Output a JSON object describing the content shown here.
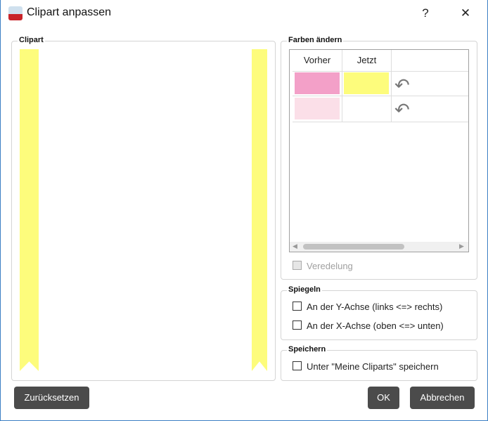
{
  "dialog": {
    "title": "Clipart anpassen",
    "help": "?",
    "close": "✕"
  },
  "clipart_group": {
    "label": "Clipart",
    "strip_color": "#fdfc7c"
  },
  "colors_group": {
    "label": "Farben ändern",
    "headers": [
      "Vorher",
      "Jetzt"
    ],
    "rows": [
      {
        "before": "#f3a0c8",
        "now": "#fdfc7c",
        "undo_icon": "undo-arrow-icon"
      },
      {
        "before": "#fbdfe8",
        "now": "",
        "undo_icon": "undo-arrow-icon"
      }
    ],
    "veredelung": {
      "label": "Veredelung",
      "checked": false,
      "enabled": false
    }
  },
  "mirror_group": {
    "label": "Spiegeln",
    "options": [
      {
        "label": "An der Y-Achse (links <=> rechts)",
        "checked": false
      },
      {
        "label": "An der X-Achse (oben <=> unten)",
        "checked": false
      }
    ]
  },
  "save_group": {
    "label": "Speichern",
    "option": {
      "label": "Unter \"Meine Cliparts\" speichern",
      "checked": false
    }
  },
  "buttons": {
    "reset": "Zurücksetzen",
    "ok": "OK",
    "cancel": "Abbrechen"
  }
}
